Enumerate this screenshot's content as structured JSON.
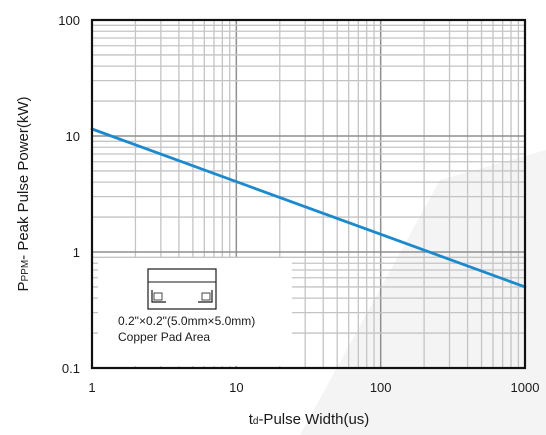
{
  "chart_data": {
    "type": "line",
    "x_scale": "log",
    "y_scale": "log",
    "xlim": [
      1,
      1000
    ],
    "ylim": [
      0.1,
      100
    ],
    "x_ticks": [
      "1",
      "10",
      "100",
      "1000"
    ],
    "y_ticks": [
      "0.1",
      "1",
      "10",
      "100"
    ],
    "xlabel": {
      "prefix": "t",
      "subscript": "d",
      "suffix": "-Pulse Width(us)"
    },
    "ylabel": {
      "prefix": "P",
      "subscript": "PPM",
      "suffix": "- Peak Pulse Power(kW)"
    },
    "grid": true,
    "series": [
      {
        "color": "#1a8ad0",
        "x": [
          1,
          1000
        ],
        "y": [
          11.5,
          0.5
        ]
      }
    ],
    "annotation": {
      "line1": "0.2\"×0.2\"(5.0mm×5.0mm)",
      "line2": "Copper Pad Area",
      "icon": "smd-package-icon"
    }
  }
}
